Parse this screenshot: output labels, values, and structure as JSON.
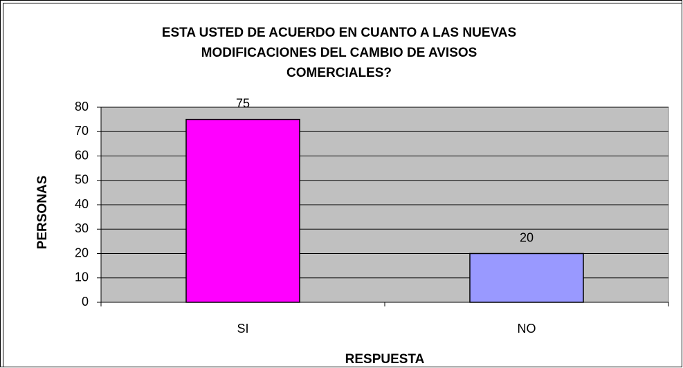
{
  "chart_data": {
    "type": "bar",
    "title": [
      "ESTA USTED DE ACUERDO EN CUANTO A LAS NUEVAS",
      "MODIFICACIONES DEL CAMBIO DE AVISOS",
      "COMERCIALES?"
    ],
    "x_label": "RESPUESTA",
    "y_label": "PERSONAS",
    "categories": [
      "SI",
      "NO"
    ],
    "values": [
      75,
      20
    ],
    "colors": [
      "#ff00ff",
      "#9999ff"
    ],
    "ylim": [
      0,
      80
    ],
    "yticks": [
      0,
      10,
      20,
      30,
      40,
      50,
      60,
      70,
      80
    ],
    "grid": true
  }
}
